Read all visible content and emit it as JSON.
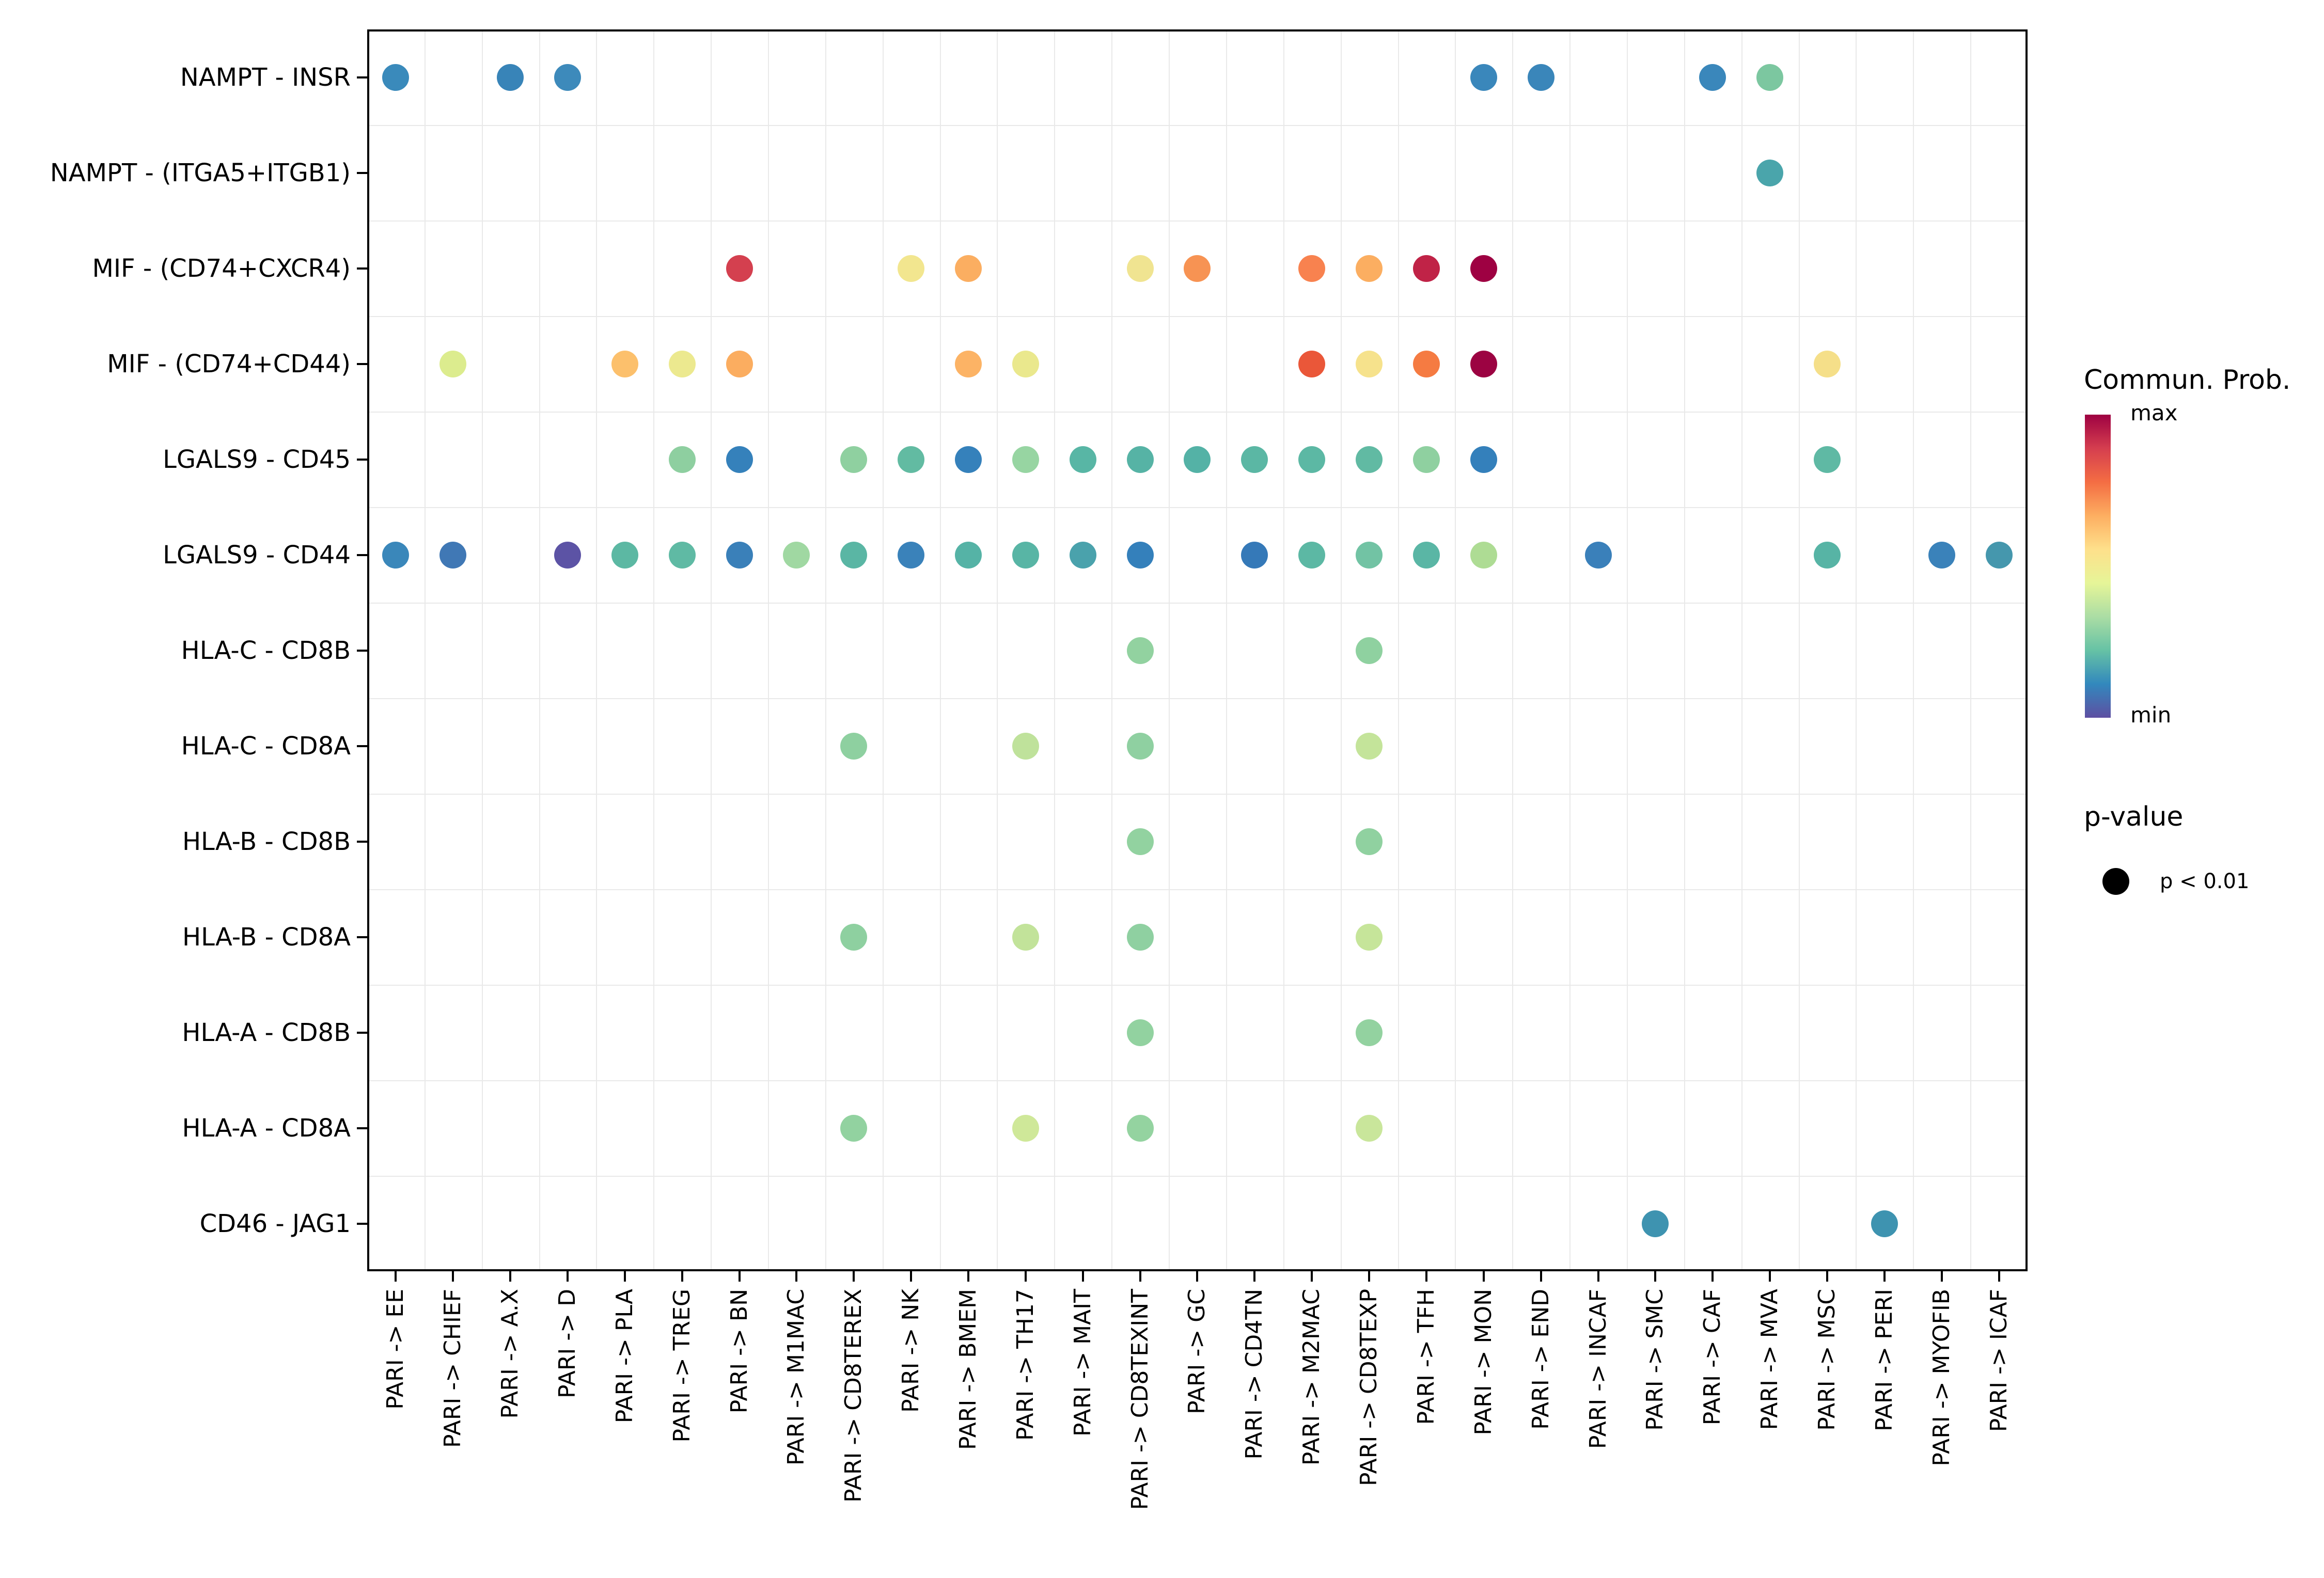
{
  "figure": {
    "background": "#ffffff",
    "panel_border_color": "#000000",
    "grid_color": "#e9e9e9"
  },
  "legend": {
    "colorbar_title": "Commun. Prob.",
    "max_label": "max",
    "min_label": "min",
    "colorbar_gradient_top_to_bottom": [
      "#9e0142",
      "#d53e4f",
      "#f46d43",
      "#fdae61",
      "#fee08b",
      "#e6f598",
      "#abdda4",
      "#66c2a5",
      "#3288bd",
      "#5e4fa2"
    ],
    "pvalue_title": "p-value",
    "pvalue_item_label": "p < 0.01",
    "pvalue_dot_color": "#000000"
  },
  "chart_data": {
    "type": "scatter",
    "title": "",
    "xlabel": "",
    "ylabel": "",
    "grid": "on",
    "color_encoding": "Commun. Prob. (Spectral colormap, min = purple-blue, max = dark red)",
    "size_encoding": "p-value: p < 0.01 (uniform dot size)",
    "x_categories": [
      "PARI -> EE",
      "PARI -> CHIEF",
      "PARI -> A.X",
      "PARI -> D",
      "PARI -> PLA",
      "PARI -> TREG",
      "PARI -> BN",
      "PARI -> M1MAC",
      "PARI -> CD8TEREX",
      "PARI -> NK",
      "PARI -> BMEM",
      "PARI -> TH17",
      "PARI -> MAIT",
      "PARI -> CD8TEXINT",
      "PARI -> GC",
      "PARI -> CD4TN",
      "PARI -> M2MAC",
      "PARI -> CD8TEXP",
      "PARI -> TFH",
      "PARI -> MON",
      "PARI -> END",
      "PARI -> INCAF",
      "PARI -> SMC",
      "PARI -> CAF",
      "PARI -> MVA",
      "PARI -> MSC",
      "PARI -> PERI",
      "PARI -> MYOFIB",
      "PARI -> ICAF"
    ],
    "y_categories": [
      "NAMPT - INSR",
      "NAMPT - (ITGA5+ITGB1)",
      "MIF - (CD74+CXCR4)",
      "MIF - (CD74+CD44)",
      "LGALS9 - CD45",
      "LGALS9 - CD44",
      "HLA-C - CD8B",
      "HLA-C - CD8A",
      "HLA-B - CD8B",
      "HLA-B - CD8A",
      "HLA-A - CD8B",
      "HLA-A - CD8A",
      "CD46 - JAG1"
    ],
    "points": [
      {
        "x": "PARI -> EE",
        "y": "NAMPT - INSR",
        "c": "#3a8abb"
      },
      {
        "x": "PARI -> A.X",
        "y": "NAMPT - INSR",
        "c": "#3884b8"
      },
      {
        "x": "PARI -> D",
        "y": "NAMPT - INSR",
        "c": "#3d8abb"
      },
      {
        "x": "PARI -> MON",
        "y": "NAMPT - INSR",
        "c": "#3a87bb"
      },
      {
        "x": "PARI -> END",
        "y": "NAMPT - INSR",
        "c": "#3a86ba"
      },
      {
        "x": "PARI -> CAF",
        "y": "NAMPT - INSR",
        "c": "#3a87bb"
      },
      {
        "x": "PARI -> MVA",
        "y": "NAMPT - INSR",
        "c": "#7cc7a0"
      },
      {
        "x": "PARI -> MVA",
        "y": "NAMPT - (ITGA5+ITGB1)",
        "c": "#4aa5ab"
      },
      {
        "x": "PARI -> BN",
        "y": "MIF - (CD74+CXCR4)",
        "c": "#d4404f"
      },
      {
        "x": "PARI -> NK",
        "y": "MIF - (CD74+CXCR4)",
        "c": "#f2e68f"
      },
      {
        "x": "PARI -> BMEM",
        "y": "MIF - (CD74+CXCR4)",
        "c": "#fbae61"
      },
      {
        "x": "PARI -> CD8TEXINT",
        "y": "MIF - (CD74+CXCR4)",
        "c": "#f0e491"
      },
      {
        "x": "PARI -> GC",
        "y": "MIF - (CD74+CXCR4)",
        "c": "#f79353"
      },
      {
        "x": "PARI -> M2MAC",
        "y": "MIF - (CD74+CXCR4)",
        "c": "#f8824f"
      },
      {
        "x": "PARI -> CD8TEXP",
        "y": "MIF - (CD74+CXCR4)",
        "c": "#fbae61"
      },
      {
        "x": "PARI -> TFH",
        "y": "MIF - (CD74+CXCR4)",
        "c": "#c02347"
      },
      {
        "x": "PARI -> MON",
        "y": "MIF - (CD74+CXCR4)",
        "c": "#9e0142"
      },
      {
        "x": "PARI -> CHIEF",
        "y": "MIF - (CD74+CD44)",
        "c": "#dcec8e"
      },
      {
        "x": "PARI -> PLA",
        "y": "MIF - (CD74+CD44)",
        "c": "#fcc06c"
      },
      {
        "x": "PARI -> TREG",
        "y": "MIF - (CD74+CD44)",
        "c": "#ece98f"
      },
      {
        "x": "PARI -> BN",
        "y": "MIF - (CD74+CD44)",
        "c": "#fbad60"
      },
      {
        "x": "PARI -> BMEM",
        "y": "MIF - (CD74+CD44)",
        "c": "#fcb365"
      },
      {
        "x": "PARI -> TH17",
        "y": "MIF - (CD74+CD44)",
        "c": "#eae88d"
      },
      {
        "x": "PARI -> M2MAC",
        "y": "MIF - (CD74+CD44)",
        "c": "#ea5739"
      },
      {
        "x": "PARI -> CD8TEXP",
        "y": "MIF - (CD74+CD44)",
        "c": "#f6e28c"
      },
      {
        "x": "PARI -> TFH",
        "y": "MIF - (CD74+CD44)",
        "c": "#f57b42"
      },
      {
        "x": "PARI -> MON",
        "y": "MIF - (CD74+CD44)",
        "c": "#9c0342"
      },
      {
        "x": "PARI -> MSC",
        "y": "MIF - (CD74+CD44)",
        "c": "#f5df89"
      },
      {
        "x": "PARI -> TREG",
        "y": "LGALS9 - CD45",
        "c": "#8ecfa0"
      },
      {
        "x": "PARI -> BN",
        "y": "LGALS9 - CD45",
        "c": "#3581bb"
      },
      {
        "x": "PARI -> CD8TEREX",
        "y": "LGALS9 - CD45",
        "c": "#8fd0a0"
      },
      {
        "x": "PARI -> NK",
        "y": "LGALS9 - CD45",
        "c": "#62bba2"
      },
      {
        "x": "PARI -> BMEM",
        "y": "LGALS9 - CD45",
        "c": "#3581bb"
      },
      {
        "x": "PARI -> TH17",
        "y": "LGALS9 - CD45",
        "c": "#97d5a2"
      },
      {
        "x": "PARI -> MAIT",
        "y": "LGALS9 - CD45",
        "c": "#58b6a5"
      },
      {
        "x": "PARI -> CD8TEXINT",
        "y": "LGALS9 - CD45",
        "c": "#56b3a5"
      },
      {
        "x": "PARI -> GC",
        "y": "LGALS9 - CD45",
        "c": "#54b2a6"
      },
      {
        "x": "PARI -> CD4TN",
        "y": "LGALS9 - CD45",
        "c": "#5bb7a4"
      },
      {
        "x": "PARI -> M2MAC",
        "y": "LGALS9 - CD45",
        "c": "#5cb8a4"
      },
      {
        "x": "PARI -> CD8TEXP",
        "y": "LGALS9 - CD45",
        "c": "#61baa3"
      },
      {
        "x": "PARI -> TFH",
        "y": "LGALS9 - CD45",
        "c": "#8fd0a0"
      },
      {
        "x": "PARI -> MON",
        "y": "LGALS9 - CD45",
        "c": "#3480bb"
      },
      {
        "x": "PARI -> MSC",
        "y": "LGALS9 - CD45",
        "c": "#5fb9a4"
      },
      {
        "x": "PARI -> EE",
        "y": "LGALS9 - CD44",
        "c": "#3a87ba"
      },
      {
        "x": "PARI -> CHIEF",
        "y": "LGALS9 - CD44",
        "c": "#4078b5"
      },
      {
        "x": "PARI -> D",
        "y": "LGALS9 - CD44",
        "c": "#5c53a5"
      },
      {
        "x": "PARI -> PLA",
        "y": "LGALS9 - CD44",
        "c": "#5cb8a3"
      },
      {
        "x": "PARI -> TREG",
        "y": "LGALS9 - CD44",
        "c": "#5fbaa4"
      },
      {
        "x": "PARI -> BN",
        "y": "LGALS9 - CD44",
        "c": "#3a80b9"
      },
      {
        "x": "PARI -> M1MAC",
        "y": "LGALS9 - CD44",
        "c": "#a0d8a2"
      },
      {
        "x": "PARI -> CD8TEREX",
        "y": "LGALS9 - CD44",
        "c": "#5ab6a4"
      },
      {
        "x": "PARI -> NK",
        "y": "LGALS9 - CD44",
        "c": "#3a82ba"
      },
      {
        "x": "PARI -> BMEM",
        "y": "LGALS9 - CD44",
        "c": "#55b3a6"
      },
      {
        "x": "PARI -> TH17",
        "y": "LGALS9 - CD44",
        "c": "#58b5a5"
      },
      {
        "x": "PARI -> MAIT",
        "y": "LGALS9 - CD44",
        "c": "#4aa2ac"
      },
      {
        "x": "PARI -> CD8TEXINT",
        "y": "LGALS9 - CD44",
        "c": "#3480bb"
      },
      {
        "x": "PARI -> CD4TN",
        "y": "LGALS9 - CD44",
        "c": "#3579b8"
      },
      {
        "x": "PARI -> M2MAC",
        "y": "LGALS9 - CD44",
        "c": "#5cb8a4"
      },
      {
        "x": "PARI -> CD8TEXP",
        "y": "LGALS9 - CD44",
        "c": "#72c3a4"
      },
      {
        "x": "PARI -> TFH",
        "y": "LGALS9 - CD44",
        "c": "#5ab6a5"
      },
      {
        "x": "PARI -> MON",
        "y": "LGALS9 - CD44",
        "c": "#aedc94"
      },
      {
        "x": "PARI -> INCAF",
        "y": "LGALS9 - CD44",
        "c": "#3a80ba"
      },
      {
        "x": "PARI -> MSC",
        "y": "LGALS9 - CD44",
        "c": "#57b4a5"
      },
      {
        "x": "PARI -> MYOFIB",
        "y": "LGALS9 - CD44",
        "c": "#3a82ba"
      },
      {
        "x": "PARI -> ICAF",
        "y": "LGALS9 - CD44",
        "c": "#4597ad"
      },
      {
        "x": "PARI -> CD8TEXINT",
        "y": "HLA-C - CD8B",
        "c": "#92d2a0"
      },
      {
        "x": "PARI -> CD8TEXP",
        "y": "HLA-C - CD8B",
        "c": "#8fd1a0"
      },
      {
        "x": "PARI -> CD8TEREX",
        "y": "HLA-C - CD8A",
        "c": "#8ed0a0"
      },
      {
        "x": "PARI -> TH17",
        "y": "HLA-C - CD8A",
        "c": "#bfe29b"
      },
      {
        "x": "PARI -> CD8TEXINT",
        "y": "HLA-C - CD8A",
        "c": "#8fd0a1"
      },
      {
        "x": "PARI -> CD8TEXP",
        "y": "HLA-C - CD8A",
        "c": "#c4e49a"
      },
      {
        "x": "PARI -> CD8TEXINT",
        "y": "HLA-B - CD8B",
        "c": "#92d2a0"
      },
      {
        "x": "PARI -> CD8TEXP",
        "y": "HLA-B - CD8B",
        "c": "#90d1a0"
      },
      {
        "x": "PARI -> CD8TEREX",
        "y": "HLA-B - CD8A",
        "c": "#8ed0a0"
      },
      {
        "x": "PARI -> TH17",
        "y": "HLA-B - CD8A",
        "c": "#c2e39a"
      },
      {
        "x": "PARI -> CD8TEXINT",
        "y": "HLA-B - CD8A",
        "c": "#8fd0a1"
      },
      {
        "x": "PARI -> CD8TEXP",
        "y": "HLA-B - CD8A",
        "c": "#c6e59a"
      },
      {
        "x": "PARI -> CD8TEXINT",
        "y": "HLA-A - CD8B",
        "c": "#92d2a0"
      },
      {
        "x": "PARI -> CD8TEXP",
        "y": "HLA-A - CD8B",
        "c": "#93d2a0"
      },
      {
        "x": "PARI -> CD8TEREX",
        "y": "HLA-A - CD8A",
        "c": "#92d2a0"
      },
      {
        "x": "PARI -> TH17",
        "y": "HLA-A - CD8A",
        "c": "#cfe899"
      },
      {
        "x": "PARI -> CD8TEXINT",
        "y": "HLA-A - CD8A",
        "c": "#94d3a0"
      },
      {
        "x": "PARI -> CD8TEXP",
        "y": "HLA-A - CD8A",
        "c": "#c9e69b"
      },
      {
        "x": "PARI -> SMC",
        "y": "CD46 - JAG1",
        "c": "#3e93b0"
      },
      {
        "x": "PARI -> PERI",
        "y": "CD46 - JAG1",
        "c": "#3e93b0"
      }
    ]
  }
}
